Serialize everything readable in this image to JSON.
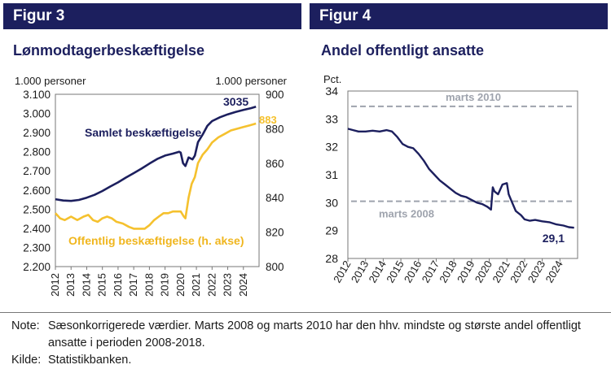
{
  "figure1": {
    "label": "Figur 3",
    "title": "Lønmodtagerbeskæftigelse",
    "chart_data": {
      "type": "line",
      "left_unit": "1.000 personer",
      "right_unit": "1.000 personer",
      "left_ylim": [
        2200,
        3100
      ],
      "left_ticks": [
        "2.200",
        "2.300",
        "2.400",
        "2.500",
        "2.600",
        "2.700",
        "2.800",
        "2.900",
        "3.000",
        "3.100"
      ],
      "right_ylim": [
        800,
        900
      ],
      "right_ticks": [
        "800",
        "820",
        "840",
        "860",
        "880",
        "900"
      ],
      "x_ticks": [
        "2012",
        "2013",
        "2014",
        "2015",
        "2016",
        "2017",
        "2018",
        "2019",
        "2020",
        "2021",
        "2022",
        "2023",
        "2024"
      ],
      "xlim": [
        2012,
        2025
      ],
      "series": [
        {
          "name": "Samlet beskæftigelse",
          "axis": "left",
          "color": "#1c1f5e",
          "end_label": "3035",
          "points": [
            [
              2012.0,
              2552
            ],
            [
              2012.5,
              2545
            ],
            [
              2013.0,
              2543
            ],
            [
              2013.5,
              2548
            ],
            [
              2014.0,
              2560
            ],
            [
              2014.5,
              2575
            ],
            [
              2015.0,
              2595
            ],
            [
              2015.5,
              2618
            ],
            [
              2016.0,
              2640
            ],
            [
              2016.5,
              2665
            ],
            [
              2017.0,
              2688
            ],
            [
              2017.5,
              2712
            ],
            [
              2018.0,
              2738
            ],
            [
              2018.5,
              2762
            ],
            [
              2019.0,
              2780
            ],
            [
              2019.5,
              2790
            ],
            [
              2019.9,
              2800
            ],
            [
              2020.0,
              2795
            ],
            [
              2020.15,
              2740
            ],
            [
              2020.3,
              2725
            ],
            [
              2020.5,
              2770
            ],
            [
              2020.75,
              2760
            ],
            [
              2020.9,
              2780
            ],
            [
              2021.1,
              2850
            ],
            [
              2021.4,
              2890
            ],
            [
              2021.7,
              2935
            ],
            [
              2022.0,
              2960
            ],
            [
              2022.5,
              2980
            ],
            [
              2023.0,
              2995
            ],
            [
              2023.5,
              3008
            ],
            [
              2024.0,
              3018
            ],
            [
              2024.5,
              3028
            ],
            [
              2024.8,
              3035
            ]
          ]
        },
        {
          "name": "Offentlig beskæftigelse (h. akse)",
          "axis": "right",
          "color": "#f5c12e",
          "end_label": "883",
          "points": [
            [
              2012.0,
              831
            ],
            [
              2012.3,
              828
            ],
            [
              2012.6,
              827
            ],
            [
              2013.0,
              829
            ],
            [
              2013.4,
              827
            ],
            [
              2013.8,
              829
            ],
            [
              2014.1,
              830
            ],
            [
              2014.4,
              827
            ],
            [
              2014.7,
              826
            ],
            [
              2015.0,
              828
            ],
            [
              2015.3,
              829
            ],
            [
              2015.6,
              828
            ],
            [
              2015.9,
              826
            ],
            [
              2016.3,
              825
            ],
            [
              2016.7,
              823
            ],
            [
              2017.0,
              822
            ],
            [
              2017.3,
              822
            ],
            [
              2017.7,
              822
            ],
            [
              2018.0,
              824
            ],
            [
              2018.3,
              827
            ],
            [
              2018.6,
              829
            ],
            [
              2018.9,
              831
            ],
            [
              2019.2,
              831
            ],
            [
              2019.5,
              832
            ],
            [
              2019.8,
              832
            ],
            [
              2020.0,
              832
            ],
            [
              2020.2,
              829
            ],
            [
              2020.3,
              828
            ],
            [
              2020.5,
              840
            ],
            [
              2020.7,
              848
            ],
            [
              2020.9,
              852
            ],
            [
              2021.1,
              860
            ],
            [
              2021.4,
              865
            ],
            [
              2021.7,
              868
            ],
            [
              2022.0,
              872
            ],
            [
              2022.4,
              875
            ],
            [
              2022.8,
              877
            ],
            [
              2023.2,
              879
            ],
            [
              2023.6,
              880
            ],
            [
              2024.0,
              881
            ],
            [
              2024.4,
              882
            ],
            [
              2024.8,
              883
            ]
          ]
        }
      ]
    }
  },
  "figure2": {
    "label": "Figur 4",
    "title": "Andel offentligt ansatte",
    "chart_data": {
      "type": "line",
      "y_unit": "Pct.",
      "ylim": [
        28,
        34
      ],
      "y_ticks": [
        "28",
        "29",
        "30",
        "31",
        "32",
        "33",
        "34"
      ],
      "x_ticks": [
        "2012",
        "2013",
        "2014",
        "2015",
        "2016",
        "2017",
        "2018",
        "2019",
        "2020",
        "2021",
        "2022",
        "2023",
        "2024"
      ],
      "xlim": [
        2012,
        2025
      ],
      "reference_lines": [
        {
          "label": "marts 2010",
          "value": 33.45
        },
        {
          "label": "marts 2008",
          "value": 30.05
        }
      ],
      "series": [
        {
          "name": "Andel offentligt ansatte",
          "color": "#1c1f5e",
          "end_label": "29,1",
          "points": [
            [
              2012.0,
              32.65
            ],
            [
              2012.3,
              32.6
            ],
            [
              2012.6,
              32.55
            ],
            [
              2013.0,
              32.55
            ],
            [
              2013.4,
              32.58
            ],
            [
              2013.8,
              32.55
            ],
            [
              2014.2,
              32.6
            ],
            [
              2014.5,
              32.55
            ],
            [
              2014.8,
              32.35
            ],
            [
              2015.1,
              32.1
            ],
            [
              2015.4,
              32.0
            ],
            [
              2015.7,
              31.95
            ],
            [
              2016.0,
              31.75
            ],
            [
              2016.3,
              31.5
            ],
            [
              2016.6,
              31.2
            ],
            [
              2016.9,
              31.0
            ],
            [
              2017.2,
              30.8
            ],
            [
              2017.5,
              30.65
            ],
            [
              2017.8,
              30.5
            ],
            [
              2018.1,
              30.35
            ],
            [
              2018.4,
              30.25
            ],
            [
              2018.7,
              30.2
            ],
            [
              2019.0,
              30.1
            ],
            [
              2019.3,
              30.0
            ],
            [
              2019.6,
              29.95
            ],
            [
              2019.9,
              29.85
            ],
            [
              2020.1,
              29.75
            ],
            [
              2020.2,
              30.55
            ],
            [
              2020.3,
              30.4
            ],
            [
              2020.5,
              30.3
            ],
            [
              2020.75,
              30.65
            ],
            [
              2021.0,
              30.7
            ],
            [
              2021.1,
              30.3
            ],
            [
              2021.3,
              30.0
            ],
            [
              2021.5,
              29.7
            ],
            [
              2021.8,
              29.55
            ],
            [
              2022.0,
              29.4
            ],
            [
              2022.3,
              29.35
            ],
            [
              2022.6,
              29.38
            ],
            [
              2023.0,
              29.33
            ],
            [
              2023.4,
              29.3
            ],
            [
              2023.8,
              29.22
            ],
            [
              2024.2,
              29.18
            ],
            [
              2024.5,
              29.12
            ],
            [
              2024.8,
              29.1
            ]
          ]
        }
      ]
    }
  },
  "notes": {
    "note_key": "Note:",
    "note_text": "Sæsonkorrigerede værdier. Marts 2008 og marts 2010 har den hhv. mindste og største andel offentligt ansatte i perioden 2008-2018.",
    "source_key": "Kilde:",
    "source_text": "Statistikbanken."
  }
}
